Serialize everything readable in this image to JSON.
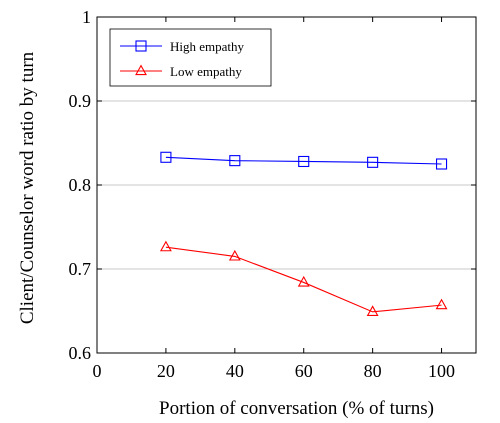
{
  "chart_data": {
    "type": "line",
    "title": "",
    "xlabel": "Portion of conversation (% of turns)",
    "ylabel": "Client/Counselor word ratio by turn",
    "xlim": [
      0,
      110
    ],
    "ylim": [
      0.6,
      1.0
    ],
    "x_ticks": [
      0,
      20,
      40,
      60,
      80,
      100
    ],
    "y_ticks": [
      0.6,
      0.7,
      0.8,
      0.9,
      1.0
    ],
    "x_tick_labels": [
      "0",
      "20",
      "40",
      "60",
      "80",
      "100"
    ],
    "y_tick_labels": [
      "0.6",
      "0.7",
      "0.8",
      "0.9",
      "1"
    ],
    "grid": "horizontal",
    "legend_position": "top-left",
    "x": [
      20,
      40,
      60,
      80,
      100
    ],
    "series": [
      {
        "name": "High empathy",
        "marker": "square",
        "color": "#0000ff",
        "values": [
          0.833,
          0.829,
          0.828,
          0.827,
          0.825
        ]
      },
      {
        "name": "Low empathy",
        "marker": "triangle",
        "color": "#ff0000",
        "values": [
          0.726,
          0.715,
          0.684,
          0.649,
          0.657
        ]
      }
    ]
  }
}
